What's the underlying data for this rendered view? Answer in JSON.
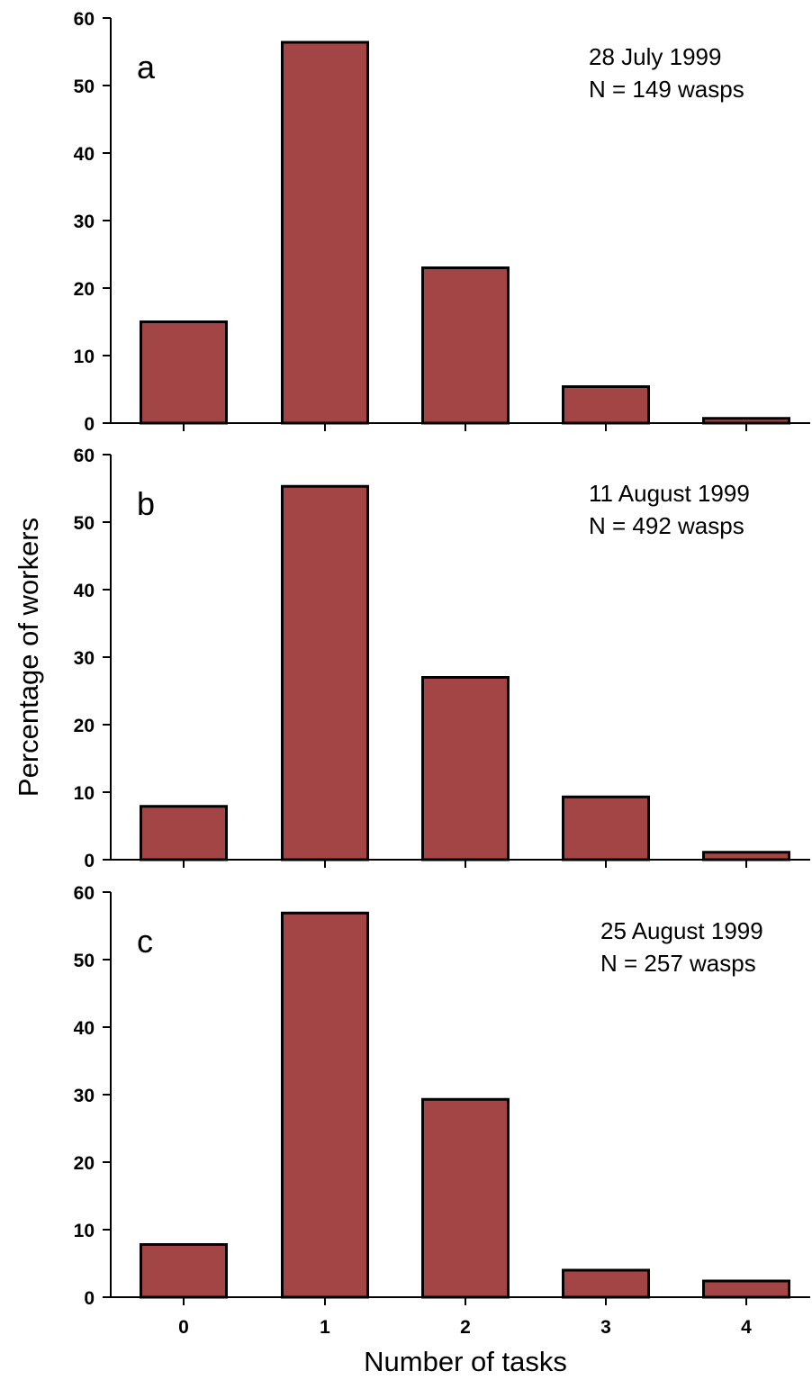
{
  "chart_data": [
    {
      "type": "bar",
      "panel_label": "a",
      "annotation": [
        "28 July 1999",
        "N = 149 wasps"
      ],
      "categories": [
        "0",
        "1",
        "2",
        "3",
        "4"
      ],
      "values": [
        15,
        56.4,
        23,
        5.4,
        0.7
      ],
      "ylim": [
        0,
        60
      ],
      "yticks": [
        "0",
        "10",
        "20",
        "30",
        "40",
        "50",
        "60"
      ],
      "bar_color": "#a44545"
    },
    {
      "type": "bar",
      "panel_label": "b",
      "annotation": [
        "11 August 1999",
        "N = 492 wasps"
      ],
      "categories": [
        "0",
        "1",
        "2",
        "3",
        "4"
      ],
      "values": [
        7.9,
        55.3,
        27,
        9.3,
        1.1
      ],
      "ylim": [
        0,
        60
      ],
      "yticks": [
        "0",
        "10",
        "20",
        "30",
        "40",
        "50",
        "60"
      ],
      "bar_color": "#a44545"
    },
    {
      "type": "bar",
      "panel_label": "c",
      "annotation": [
        "25 August 1999",
        "N = 257 wasps"
      ],
      "categories": [
        "0",
        "1",
        "2",
        "3",
        "4"
      ],
      "values": [
        7.8,
        56.9,
        29.3,
        4,
        2.4
      ],
      "ylim": [
        0,
        60
      ],
      "yticks": [
        "0",
        "10",
        "20",
        "30",
        "40",
        "50",
        "60"
      ],
      "bar_color": "#a44545"
    }
  ],
  "ylabel": "Percentage of workers",
  "xlabel": "Number of  tasks"
}
